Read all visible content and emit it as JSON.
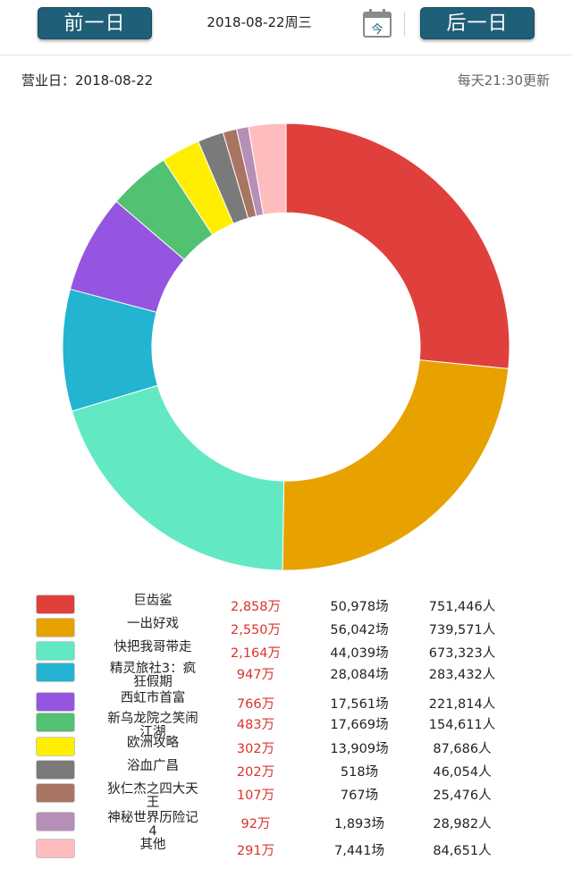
{
  "header": {
    "prev_label": "前一日",
    "next_label": "后一日",
    "date_title": "2018-08-22周三",
    "today_label": "今"
  },
  "info": {
    "business_day": "营业日：2018-08-22",
    "update_note": "每天21:30更新"
  },
  "chart_data": {
    "type": "pie",
    "donut": true,
    "unit": "万",
    "categories": [
      "巨齿鲨",
      "一出好戏",
      "快把我哥带走",
      "精灵旅社3：疯狂假期",
      "西虹市首富",
      "新乌龙院之笑闹江湖",
      "欧洲攻略",
      "浴血广昌",
      "狄仁杰之四大天王",
      "神秘世界历险记4",
      "其他"
    ],
    "values": [
      2858,
      2550,
      2164,
      947,
      766,
      483,
      302,
      202,
      107,
      92,
      291
    ],
    "colors": [
      "#e0403c",
      "#e8a200",
      "#62e9c4",
      "#22b4d0",
      "#9555e0",
      "#52c172",
      "#ffee00",
      "#7a7a7a",
      "#a87562",
      "#b68fb6",
      "#ffbcbe"
    ]
  },
  "legend": [
    {
      "name": "巨齿鲨",
      "box": "2,858万",
      "shows": "50,978场",
      "people": "751,446人"
    },
    {
      "name": "一出好戏",
      "box": "2,550万",
      "shows": "56,042场",
      "people": "739,571人"
    },
    {
      "name": "快把我哥带走",
      "box": "2,164万",
      "shows": "44,039场",
      "people": "673,323人"
    },
    {
      "name": "精灵旅社3：疯狂假期",
      "box": "947万",
      "shows": "28,084场",
      "people": "283,432人"
    },
    {
      "name": "西虹市首富",
      "box": "766万",
      "shows": "17,561场",
      "people": "221,814人"
    },
    {
      "name": "新乌龙院之笑闹江湖",
      "box": "483万",
      "shows": "17,669场",
      "people": "154,611人"
    },
    {
      "name": "欧洲攻略",
      "box": "302万",
      "shows": "13,909场",
      "people": "87,686人"
    },
    {
      "name": "浴血广昌",
      "box": "202万",
      "shows": "518场",
      "people": "46,054人"
    },
    {
      "name": "狄仁杰之四大天王",
      "box": "107万",
      "shows": "767场",
      "people": "25,476人"
    },
    {
      "name": "神秘世界历险记4",
      "box": "92万",
      "shows": "1,893场",
      "people": "28,982人"
    },
    {
      "name": "其他",
      "box": "291万",
      "shows": "7,441场",
      "people": "84,651人"
    }
  ]
}
